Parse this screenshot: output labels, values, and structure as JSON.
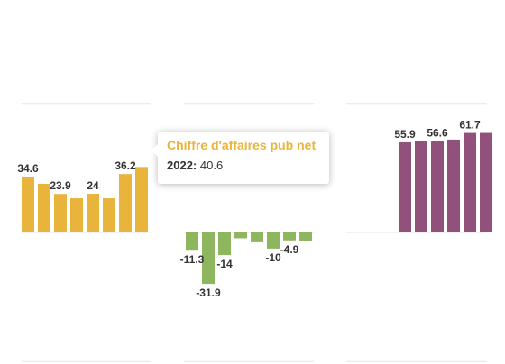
{
  "chart_data": {
    "type": "bar",
    "yaxis": {
      "unit": "",
      "gridlines": [
        -80,
        0,
        80,
        160,
        240
      ]
    },
    "groups": [
      {
        "name": "Chiffre d'affaires pub net",
        "color": "#e8b43c",
        "values": [
          34.6,
          30.2,
          23.9,
          21.2,
          24,
          21.2,
          36.2,
          40.6
        ],
        "labels": [
          "34.6",
          "",
          "23.9",
          "",
          "24",
          "",
          "36.2",
          ""
        ]
      },
      {
        "name": "",
        "color": "#8db65f",
        "values": [
          -11.3,
          -31.9,
          -14,
          -3.6,
          -6.1,
          -10,
          -4.9,
          -5.3
        ],
        "labels": [
          "-11.3",
          "-31.9",
          "-14",
          "",
          "",
          "-10",
          "-4.9",
          ""
        ]
      },
      {
        "name": "",
        "color": "#92517b",
        "values": [
          55.9,
          56.6,
          56.6,
          57.6,
          61.7,
          61.7
        ],
        "labels": [
          "55.9",
          "",
          "56.6",
          "",
          "61.7",
          ""
        ]
      }
    ]
  },
  "tooltip": {
    "title": "Chiffre d'affaires pub net",
    "year": "2022:",
    "value": "40.6"
  }
}
